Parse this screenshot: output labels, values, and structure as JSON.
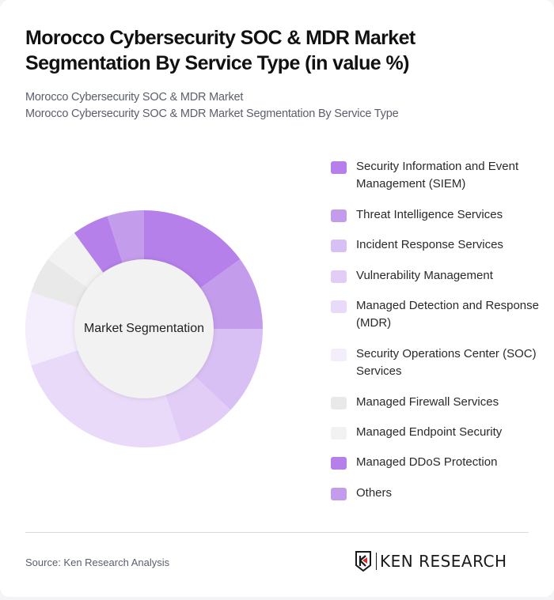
{
  "header": {
    "title": "Morocco Cybersecurity SOC & MDR Market Segmentation By Service Type (in value %)",
    "subtitle_line1": "Morocco Cybersecurity SOC & MDR Market",
    "subtitle_line2": "Morocco Cybersecurity SOC & MDR Market Segmentation By Service Type"
  },
  "chart_data": {
    "type": "pie",
    "variant": "donut",
    "title": "Morocco Cybersecurity SOC & MDR Market Segmentation By Service Type (in value %)",
    "center_label": "Market Segmentation",
    "legend_position": "right",
    "categories": [
      "Security Information and Event Management (SIEM)",
      "Threat Intelligence Services",
      "Incident Response Services",
      "Vulnerability Management",
      "Managed Detection and Response (MDR)",
      "Security Operations Center (SOC) Services",
      "Managed Firewall Services",
      "Managed Endpoint Security",
      "Managed DDoS Protection",
      "Others"
    ],
    "values": [
      15,
      10,
      12,
      8,
      25,
      10,
      5,
      5,
      5,
      5
    ],
    "colors": [
      "#b580ea",
      "#c49cec",
      "#d8c0f4",
      "#e1cdf6",
      "#e9daf9",
      "#f3edfc",
      "#e9e9e9",
      "#f2f2f2",
      "#b580ea",
      "#c49cec"
    ]
  },
  "legend": {
    "items": [
      {
        "label": "Security Information and Event Management (SIEM)",
        "color": "#b580ea"
      },
      {
        "label": "Threat Intelligence Services",
        "color": "#c49cec"
      },
      {
        "label": "Incident Response Services",
        "color": "#d8c0f4"
      },
      {
        "label": "Vulnerability Management",
        "color": "#e1cdf6"
      },
      {
        "label": "Managed Detection and Response (MDR)",
        "color": "#e9daf9"
      },
      {
        "label": "Security Operations Center (SOC) Services",
        "color": "#f3edfc"
      },
      {
        "label": "Managed Firewall Services",
        "color": "#e9e9e9"
      },
      {
        "label": "Managed Endpoint Security",
        "color": "#f2f2f2"
      },
      {
        "label": "Managed DDoS Protection",
        "color": "#b580ea"
      },
      {
        "label": "Others",
        "color": "#c49cec"
      }
    ]
  },
  "footer": {
    "source": "Source: Ken Research Analysis",
    "logo_text": "KEN RESEARCH"
  }
}
